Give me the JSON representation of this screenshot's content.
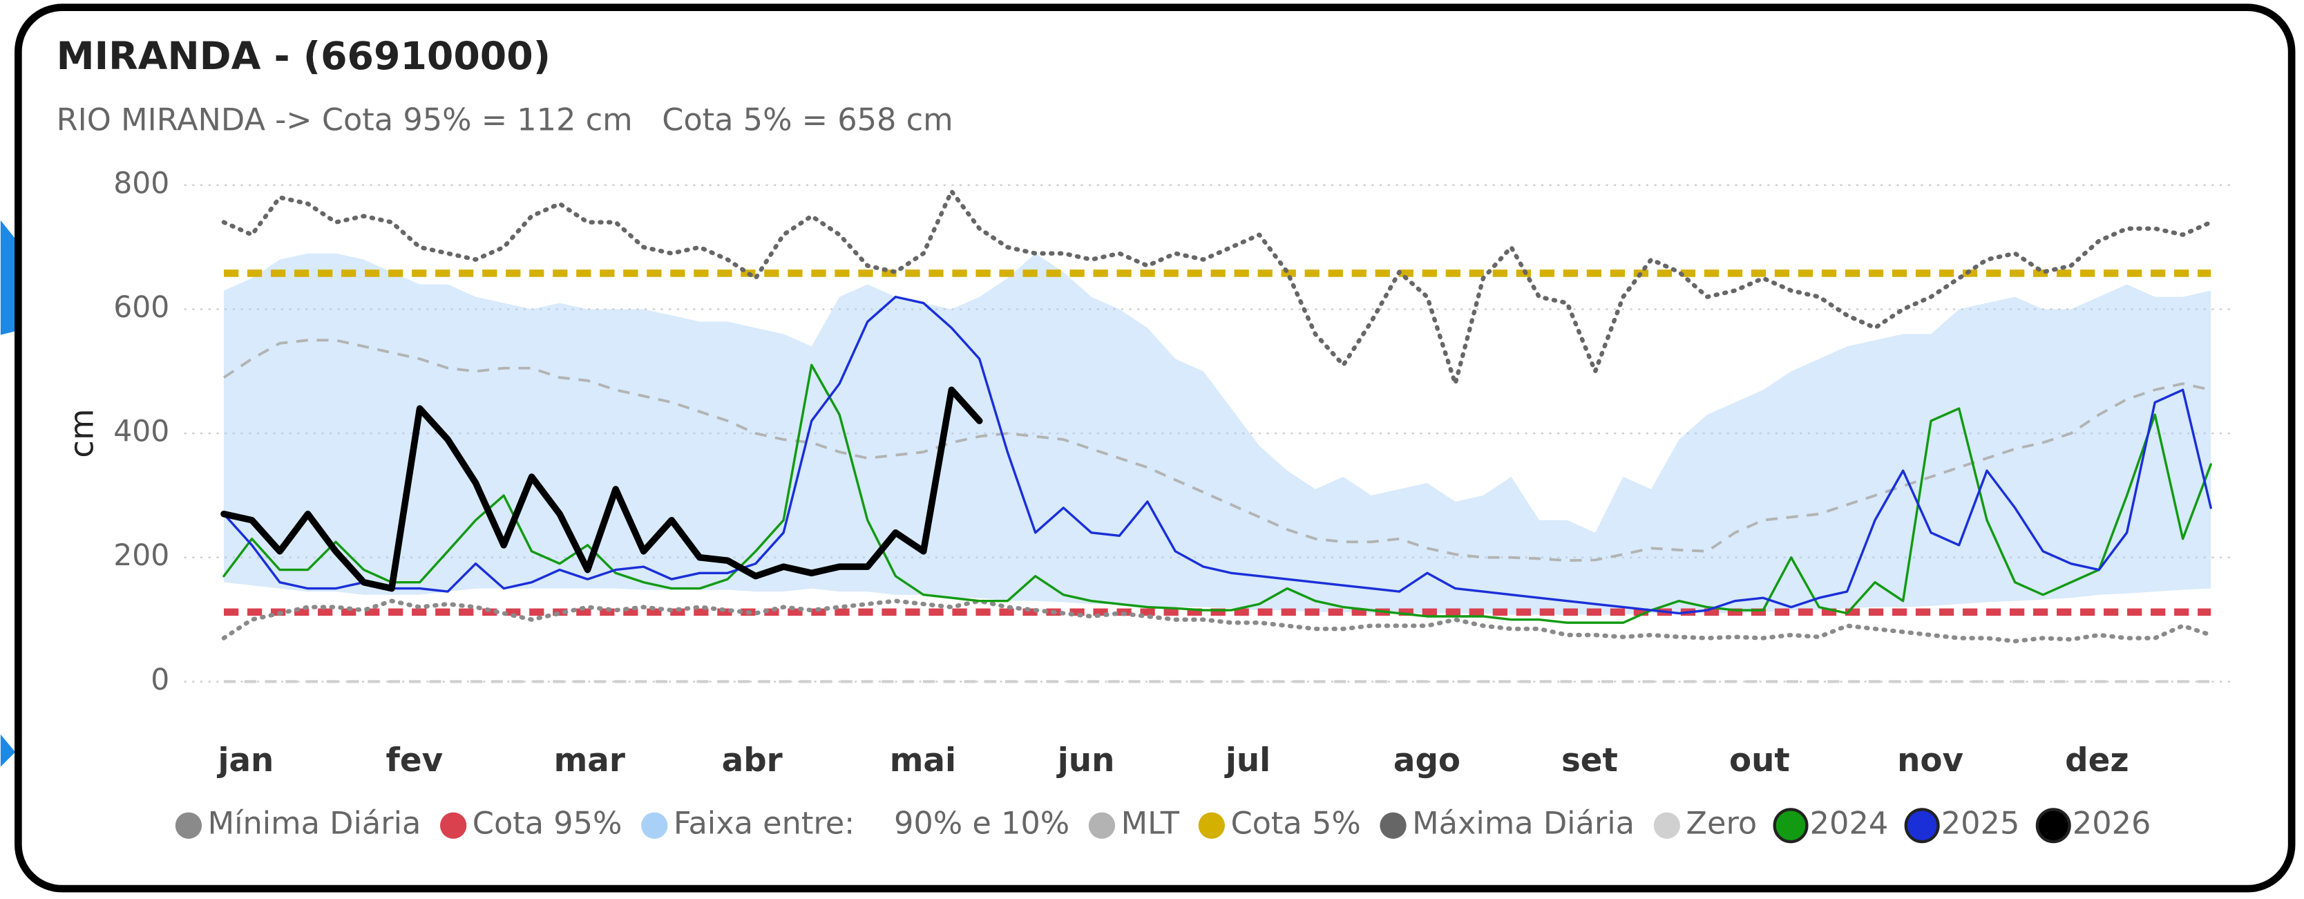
{
  "chart_data": {
    "type": "line",
    "title": "MIRANDA - (66910000)",
    "subtitle": "RIO MIRANDA -> Cota 95% = 112 cm   Cota 5% = 658 cm",
    "y_label": "cm",
    "categories": [
      "jan",
      null,
      null,
      null,
      null,
      null,
      "fev",
      null,
      null,
      null,
      null,
      null,
      "mar",
      null,
      null,
      null,
      null,
      null,
      "abr",
      null,
      null,
      null,
      null,
      null,
      "mai",
      null,
      null,
      null,
      null,
      null,
      "jun",
      null,
      null,
      null,
      null,
      null,
      "jul",
      null,
      null,
      null,
      null,
      null,
      "ago",
      null,
      null,
      null,
      null,
      null,
      "set",
      null,
      null,
      null,
      null,
      null,
      "out",
      null,
      null,
      null,
      null,
      null,
      "nov",
      null,
      null,
      null,
      null,
      null,
      "dez",
      null,
      null,
      null,
      null,
      null
    ],
    "ylim": [
      0,
      800
    ],
    "yticks": [
      0,
      200,
      400,
      600,
      800
    ],
    "grid": true,
    "series": [
      {
        "name": "Mínima Diária",
        "style": "dotted",
        "color": "#8a8a8a",
        "values": [
          70,
          100,
          110,
          120,
          120,
          115,
          130,
          120,
          125,
          120,
          110,
          100,
          110,
          120,
          115,
          120,
          115,
          120,
          115,
          110,
          120,
          115,
          120,
          125,
          130,
          125,
          120,
          130,
          120,
          115,
          110,
          105,
          110,
          105,
          100,
          100,
          95,
          95,
          90,
          85,
          85,
          90,
          90,
          90,
          100,
          90,
          85,
          85,
          75,
          75,
          72,
          75,
          72,
          70,
          72,
          70,
          75,
          72,
          90,
          85,
          80,
          75,
          70,
          70,
          65,
          70,
          68,
          75,
          70,
          70,
          90,
          75
        ]
      },
      {
        "name": "Cota 95%",
        "style": "ref",
        "color": "#d9414f",
        "value": 112
      },
      {
        "name": "Faixa entre:    90% e 10%",
        "style": "band",
        "color": "#a9d1f7",
        "high": [
          630,
          650,
          680,
          690,
          690,
          680,
          660,
          640,
          640,
          620,
          610,
          600,
          610,
          600,
          600,
          600,
          590,
          580,
          580,
          570,
          560,
          540,
          620,
          640,
          620,
          610,
          600,
          620,
          650,
          690,
          660,
          620,
          600,
          570,
          520,
          500,
          440,
          380,
          340,
          310,
          330,
          300,
          310,
          320,
          290,
          300,
          330,
          260,
          260,
          240,
          330,
          310,
          390,
          430,
          450,
          470,
          500,
          520,
          540,
          550,
          560,
          560,
          600,
          610,
          620,
          600,
          600,
          620,
          640,
          620,
          620,
          630
        ],
        "low": [
          160,
          155,
          150,
          145,
          145,
          140,
          140,
          140,
          145,
          150,
          150,
          150,
          150,
          150,
          150,
          148,
          148,
          148,
          148,
          145,
          145,
          150,
          145,
          145,
          140,
          140,
          135,
          135,
          130,
          130,
          128,
          125,
          125,
          122,
          120,
          120,
          118,
          115,
          115,
          112,
          112,
          110,
          110,
          110,
          110,
          110,
          108,
          108,
          108,
          108,
          108,
          110,
          110,
          110,
          110,
          112,
          115,
          115,
          118,
          120,
          120,
          122,
          125,
          128,
          130,
          132,
          135,
          140,
          142,
          145,
          148,
          150
        ]
      },
      {
        "name": "MLT",
        "style": "dashed",
        "color": "#b3b3b3",
        "values": [
          490,
          520,
          545,
          550,
          550,
          540,
          530,
          520,
          505,
          500,
          505,
          505,
          490,
          485,
          470,
          460,
          450,
          435,
          420,
          400,
          390,
          385,
          370,
          360,
          365,
          370,
          385,
          395,
          400,
          395,
          390,
          375,
          360,
          345,
          325,
          305,
          285,
          265,
          245,
          230,
          225,
          225,
          230,
          215,
          205,
          200,
          200,
          198,
          195,
          196,
          205,
          215,
          212,
          210,
          240,
          260,
          265,
          270,
          285,
          300,
          315,
          330,
          345,
          360,
          375,
          385,
          400,
          430,
          455,
          470,
          480,
          470
        ]
      },
      {
        "name": "Cota 5%",
        "style": "ref",
        "color": "#d4b000",
        "value": 658
      },
      {
        "name": "Máxima Diária",
        "style": "dotted",
        "color": "#666666",
        "values": [
          740,
          720,
          780,
          770,
          740,
          750,
          740,
          700,
          690,
          680,
          700,
          750,
          770,
          740,
          740,
          700,
          690,
          700,
          680,
          650,
          720,
          750,
          720,
          670,
          660,
          690,
          790,
          730,
          700,
          690,
          690,
          680,
          690,
          670,
          690,
          680,
          700,
          720,
          660,
          560,
          510,
          580,
          660,
          620,
          480,
          650,
          700,
          620,
          610,
          500,
          620,
          680,
          660,
          620,
          630,
          650,
          630,
          620,
          590,
          570,
          600,
          620,
          650,
          680,
          690,
          660,
          670,
          710,
          730,
          730,
          720,
          740
        ]
      },
      {
        "name": "Zero",
        "style": "ref",
        "color": "#d0d0d0",
        "value": 0
      },
      {
        "name": "2024",
        "style": "solid",
        "marker": "ring",
        "color": "#129a12",
        "values": [
          170,
          230,
          180,
          180,
          225,
          180,
          160,
          160,
          210,
          260,
          300,
          210,
          190,
          220,
          175,
          160,
          150,
          150,
          165,
          210,
          260,
          510,
          430,
          260,
          170,
          140,
          135,
          130,
          130,
          170,
          140,
          130,
          125,
          120,
          118,
          115,
          115,
          125,
          150,
          130,
          120,
          115,
          110,
          105,
          105,
          105,
          100,
          100,
          95,
          95,
          95,
          115,
          130,
          120,
          115,
          115,
          200,
          120,
          110,
          160,
          130,
          420,
          440,
          260,
          160,
          140,
          160,
          180,
          300,
          430,
          230,
          350
        ]
      },
      {
        "name": "2025",
        "style": "solid",
        "marker": "ring",
        "color": "#1a2fd8",
        "values": [
          270,
          220,
          160,
          150,
          150,
          160,
          150,
          150,
          145,
          190,
          150,
          160,
          180,
          165,
          180,
          185,
          165,
          175,
          175,
          190,
          240,
          420,
          480,
          580,
          620,
          610,
          570,
          520,
          370,
          240,
          280,
          240,
          235,
          290,
          210,
          185,
          175,
          170,
          165,
          160,
          155,
          150,
          145,
          175,
          150,
          145,
          140,
          135,
          130,
          125,
          120,
          115,
          110,
          115,
          130,
          135,
          120,
          135,
          145,
          260,
          340,
          240,
          220,
          340,
          280,
          210,
          190,
          180,
          240,
          450,
          470,
          280
        ]
      },
      {
        "name": "2026",
        "style": "bold",
        "marker": "ring",
        "color": "#000000",
        "values": [
          270,
          260,
          210,
          270,
          210,
          160,
          150,
          440,
          390,
          320,
          220,
          330,
          270,
          180,
          310,
          210,
          260,
          200,
          195,
          170,
          185,
          175,
          185,
          185,
          240,
          210,
          470,
          420,
          null,
          null,
          null,
          null,
          null,
          null,
          null,
          null,
          null,
          null,
          null,
          null,
          null,
          null,
          null,
          null,
          null,
          null,
          null,
          null,
          null,
          null,
          null,
          null,
          null,
          null,
          null,
          null,
          null,
          null,
          null,
          null,
          null,
          null,
          null,
          null,
          null,
          null,
          null,
          null,
          null,
          null,
          null,
          null
        ]
      }
    ]
  }
}
